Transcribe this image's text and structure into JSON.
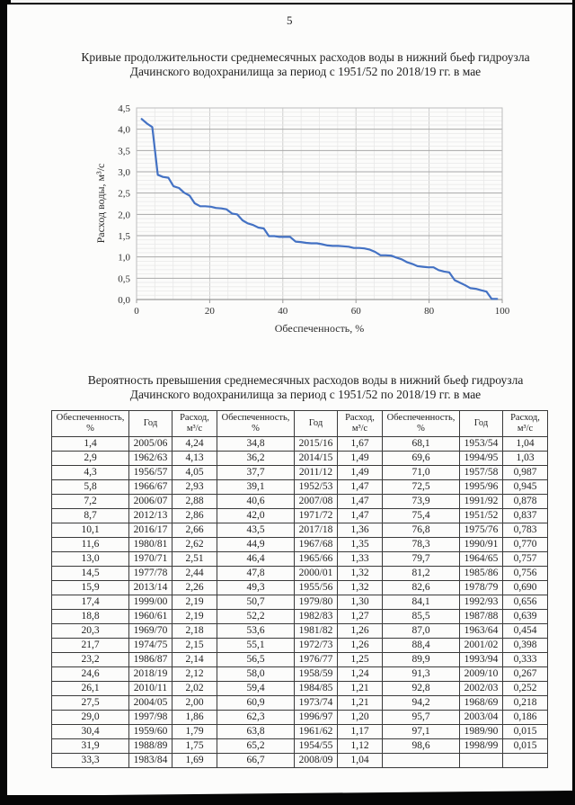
{
  "page_number": "5",
  "titles": {
    "chart": [
      "Кривые продолжительности среднемесячных расходов воды в нижний бьеф гидроузла",
      "Дачинского водохранилища за период с 1951/52 по 2018/19 гг. в мае"
    ],
    "table": [
      "Вероятность превышения среднемесячных расходов воды в нижний бьеф гидроузла",
      "Дачинского водохранилища за период с 1951/52 по 2018/19 гг. в мае"
    ]
  },
  "chart_data": {
    "type": "line",
    "title": "Кривые продолжительности среднемесячных расходов воды в нижний бьеф гидроузла Дачинского водохранилища за период с 1951/52 по 2018/19 гг. в мае",
    "xlabel": "Обеспеченность, %",
    "ylabel": "Расход воды, м³/с",
    "xlim": [
      0,
      100
    ],
    "ylim": [
      0,
      4.5
    ],
    "x_ticks": [
      0,
      20,
      40,
      60,
      80,
      100
    ],
    "y_ticks": [
      "0,0",
      "0,5",
      "1,0",
      "1,5",
      "2,0",
      "2,5",
      "3,0",
      "3,5",
      "4,0",
      "4,5"
    ],
    "grid": {
      "minor_x": 5,
      "major_x": 20,
      "minor_y": 0.1,
      "major_y": 0.5,
      "grid_on": true
    },
    "legend": "none",
    "line_color": "#4472C4",
    "x": [
      1.4,
      2.9,
      4.3,
      5.8,
      7.2,
      8.7,
      10.1,
      11.6,
      13.0,
      14.5,
      15.9,
      17.4,
      18.8,
      20.3,
      21.7,
      23.2,
      24.6,
      26.1,
      27.5,
      29.0,
      30.4,
      31.9,
      33.3,
      34.8,
      36.2,
      37.7,
      39.1,
      40.6,
      42.0,
      43.5,
      44.9,
      46.4,
      47.8,
      49.3,
      50.7,
      52.2,
      53.6,
      55.1,
      56.5,
      58.0,
      59.4,
      60.9,
      62.3,
      63.8,
      65.2,
      66.7,
      68.1,
      69.6,
      71.0,
      72.5,
      73.9,
      75.4,
      76.8,
      78.3,
      79.7,
      81.2,
      82.6,
      84.1,
      85.5,
      87.0,
      88.4,
      89.9,
      91.3,
      92.8,
      94.2,
      95.7,
      97.1,
      98.6
    ],
    "y": [
      4.24,
      4.13,
      4.05,
      2.93,
      2.88,
      2.86,
      2.66,
      2.62,
      2.51,
      2.44,
      2.26,
      2.19,
      2.19,
      2.18,
      2.15,
      2.14,
      2.12,
      2.02,
      2.0,
      1.86,
      1.79,
      1.75,
      1.69,
      1.67,
      1.49,
      1.49,
      1.47,
      1.47,
      1.47,
      1.36,
      1.35,
      1.33,
      1.32,
      1.32,
      1.3,
      1.27,
      1.26,
      1.26,
      1.25,
      1.24,
      1.21,
      1.21,
      1.2,
      1.17,
      1.12,
      1.04,
      1.04,
      1.03,
      0.987,
      0.945,
      0.878,
      0.837,
      0.783,
      0.77,
      0.757,
      0.756,
      0.69,
      0.656,
      0.639,
      0.454,
      0.398,
      0.333,
      0.267,
      0.252,
      0.218,
      0.186,
      0.015,
      0.015
    ]
  },
  "table": {
    "column_headers": [
      "Обеспеченность,\n%",
      "Год",
      "Расход,\nм³/с",
      "Обеспеченность,\n%",
      "Год",
      "Расход,\nм³/с",
      "Обеспеченность,\n%",
      "Год",
      "Расход,\nм³/с"
    ],
    "rows": [
      [
        "1,4",
        "2005/06",
        "4,24",
        "34,8",
        "2015/16",
        "1,67",
        "68,1",
        "1953/54",
        "1,04"
      ],
      [
        "2,9",
        "1962/63",
        "4,13",
        "36,2",
        "2014/15",
        "1,49",
        "69,6",
        "1994/95",
        "1,03"
      ],
      [
        "4,3",
        "1956/57",
        "4,05",
        "37,7",
        "2011/12",
        "1,49",
        "71,0",
        "1957/58",
        "0,987"
      ],
      [
        "5,8",
        "1966/67",
        "2,93",
        "39,1",
        "1952/53",
        "1,47",
        "72,5",
        "1995/96",
        "0,945"
      ],
      [
        "7,2",
        "2006/07",
        "2,88",
        "40,6",
        "2007/08",
        "1,47",
        "73,9",
        "1991/92",
        "0,878"
      ],
      [
        "8,7",
        "2012/13",
        "2,86",
        "42,0",
        "1971/72",
        "1,47",
        "75,4",
        "1951/52",
        "0,837"
      ],
      [
        "10,1",
        "2016/17",
        "2,66",
        "43,5",
        "2017/18",
        "1,36",
        "76,8",
        "1975/76",
        "0,783"
      ],
      [
        "11,6",
        "1980/81",
        "2,62",
        "44,9",
        "1967/68",
        "1,35",
        "78,3",
        "1990/91",
        "0,770"
      ],
      [
        "13,0",
        "1970/71",
        "2,51",
        "46,4",
        "1965/66",
        "1,33",
        "79,7",
        "1964/65",
        "0,757"
      ],
      [
        "14,5",
        "1977/78",
        "2,44",
        "47,8",
        "2000/01",
        "1,32",
        "81,2",
        "1985/86",
        "0,756"
      ],
      [
        "15,9",
        "2013/14",
        "2,26",
        "49,3",
        "1955/56",
        "1,32",
        "82,6",
        "1978/79",
        "0,690"
      ],
      [
        "17,4",
        "1999/00",
        "2,19",
        "50,7",
        "1979/80",
        "1,30",
        "84,1",
        "1992/93",
        "0,656"
      ],
      [
        "18,8",
        "1960/61",
        "2,19",
        "52,2",
        "1982/83",
        "1,27",
        "85,5",
        "1987/88",
        "0,639"
      ],
      [
        "20,3",
        "1969/70",
        "2,18",
        "53,6",
        "1981/82",
        "1,26",
        "87,0",
        "1963/64",
        "0,454"
      ],
      [
        "21,7",
        "1974/75",
        "2,15",
        "55,1",
        "1972/73",
        "1,26",
        "88,4",
        "2001/02",
        "0,398"
      ],
      [
        "23,2",
        "1986/87",
        "2,14",
        "56,5",
        "1976/77",
        "1,25",
        "89,9",
        "1993/94",
        "0,333"
      ],
      [
        "24,6",
        "2018/19",
        "2,12",
        "58,0",
        "1958/59",
        "1,24",
        "91,3",
        "2009/10",
        "0,267"
      ],
      [
        "26,1",
        "2010/11",
        "2,02",
        "59,4",
        "1984/85",
        "1,21",
        "92,8",
        "2002/03",
        "0,252"
      ],
      [
        "27,5",
        "2004/05",
        "2,00",
        "60,9",
        "1973/74",
        "1,21",
        "94,2",
        "1968/69",
        "0,218"
      ],
      [
        "29,0",
        "1997/98",
        "1,86",
        "62,3",
        "1996/97",
        "1,20",
        "95,7",
        "2003/04",
        "0,186"
      ],
      [
        "30,4",
        "1959/60",
        "1,79",
        "63,8",
        "1961/62",
        "1,17",
        "97,1",
        "1989/90",
        "0,015"
      ],
      [
        "31,9",
        "1988/89",
        "1,75",
        "65,2",
        "1954/55",
        "1,12",
        "98,6",
        "1998/99",
        "0,015"
      ],
      [
        "33,3",
        "1983/84",
        "1,69",
        "66,7",
        "2008/09",
        "1,04",
        "",
        "",
        ""
      ]
    ]
  }
}
